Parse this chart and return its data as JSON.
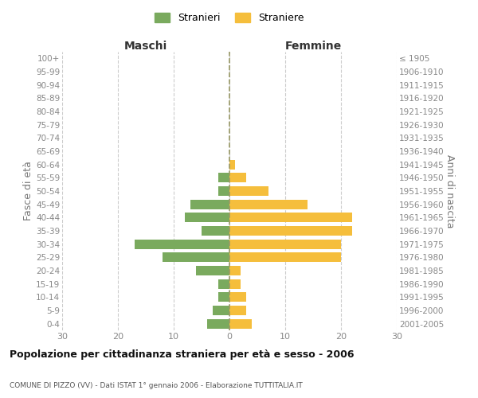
{
  "age_groups": [
    "0-4",
    "5-9",
    "10-14",
    "15-19",
    "20-24",
    "25-29",
    "30-34",
    "35-39",
    "40-44",
    "45-49",
    "50-54",
    "55-59",
    "60-64",
    "65-69",
    "70-74",
    "75-79",
    "80-84",
    "85-89",
    "90-94",
    "95-99",
    "100+"
  ],
  "birth_years": [
    "2001-2005",
    "1996-2000",
    "1991-1995",
    "1986-1990",
    "1981-1985",
    "1976-1980",
    "1971-1975",
    "1966-1970",
    "1961-1965",
    "1956-1960",
    "1951-1955",
    "1946-1950",
    "1941-1945",
    "1936-1940",
    "1931-1935",
    "1926-1930",
    "1921-1925",
    "1916-1920",
    "1911-1915",
    "1906-1910",
    "≤ 1905"
  ],
  "males": [
    4,
    3,
    2,
    2,
    6,
    12,
    17,
    5,
    8,
    7,
    2,
    2,
    0,
    0,
    0,
    0,
    0,
    0,
    0,
    0,
    0
  ],
  "females": [
    4,
    3,
    3,
    2,
    2,
    20,
    20,
    22,
    22,
    14,
    7,
    3,
    1,
    0,
    0,
    0,
    0,
    0,
    0,
    0,
    0
  ],
  "male_color": "#7aaa5e",
  "female_color": "#f5be3c",
  "xlim": 30,
  "title": "Popolazione per cittadinanza straniera per età e sesso - 2006",
  "subtitle": "COMUNE DI PIZZO (VV) - Dati ISTAT 1° gennaio 2006 - Elaborazione TUTTITALIA.IT",
  "legend_male": "Stranieri",
  "legend_female": "Straniere",
  "xlabel_left": "Maschi",
  "xlabel_right": "Femmine",
  "ylabel_left": "Fasce di età",
  "ylabel_right": "Anni di nascita",
  "background_color": "#ffffff",
  "grid_color": "#cccccc",
  "tick_color": "#888888",
  "axis_label_color": "#777777",
  "center_line_color": "#999966",
  "title_color": "#111111",
  "subtitle_color": "#555555"
}
